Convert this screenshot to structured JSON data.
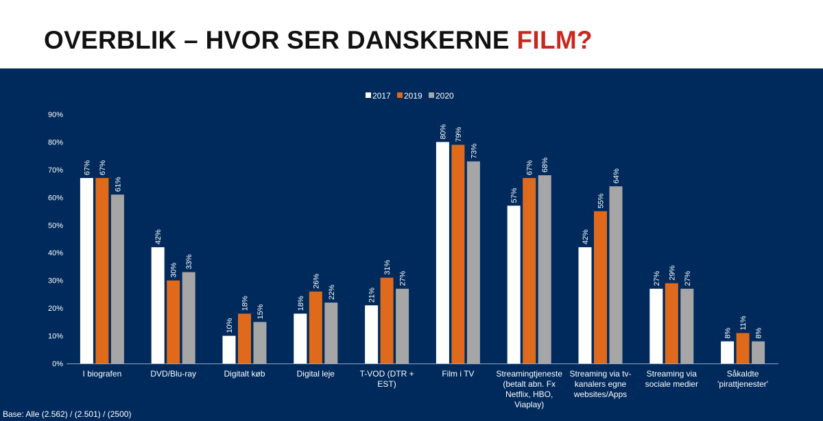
{
  "slide": {
    "title_main": "OVERBLIK – HVOR SER DANSKERNE ",
    "title_highlight": "FILM?",
    "base_note": "Base: Alle (2.562) / (2.501) / (2500)",
    "colors": {
      "background": "#002a5c",
      "title_highlight": "#c8281e"
    }
  },
  "chart_data": {
    "type": "bar",
    "categories": [
      "I biografen",
      "DVD/Blu-ray",
      "Digitalt køb",
      "Digital leje",
      "T-VOD (DTR + EST)",
      "Film i TV",
      "Streamingtjeneste (betalt abn. Fx Netflix, HBO, Viaplay)",
      "Streaming via tv-kanalers egne websites/Apps",
      "Streaming via sociale medier",
      "Såkaldte 'pirattjenester'"
    ],
    "series": [
      {
        "name": "2017",
        "color": "#ffffff",
        "values": [
          67,
          42,
          10,
          18,
          21,
          80,
          57,
          42,
          27,
          8
        ]
      },
      {
        "name": "2019",
        "color": "#e06a1b",
        "values": [
          67,
          30,
          18,
          26,
          31,
          79,
          67,
          55,
          29,
          11
        ]
      },
      {
        "name": "2020",
        "color": "#a6a6a6",
        "values": [
          61,
          33,
          15,
          22,
          27,
          73,
          68,
          64,
          27,
          8
        ]
      }
    ],
    "data_labels": [
      [
        "67%",
        "42%",
        "10%",
        "18%",
        "21%",
        "80%",
        "57%",
        "42%",
        "27%",
        "8%"
      ],
      [
        "67%",
        "30%",
        "18%",
        "26%",
        "31%",
        "79%",
        "67%",
        "55%",
        "29%",
        "11%"
      ],
      [
        "61%",
        "33%",
        "15%",
        "22%",
        "27%",
        "73%",
        "68%",
        "64%",
        "27%",
        "8%"
      ]
    ],
    "yticks": [
      "0%",
      "10%",
      "20%",
      "30%",
      "40%",
      "50%",
      "60%",
      "70%",
      "80%",
      "90%"
    ],
    "ylim": [
      0,
      90
    ],
    "grid": false,
    "legend_position": "top-center",
    "xlabel": "",
    "ylabel": "",
    "title": ""
  }
}
